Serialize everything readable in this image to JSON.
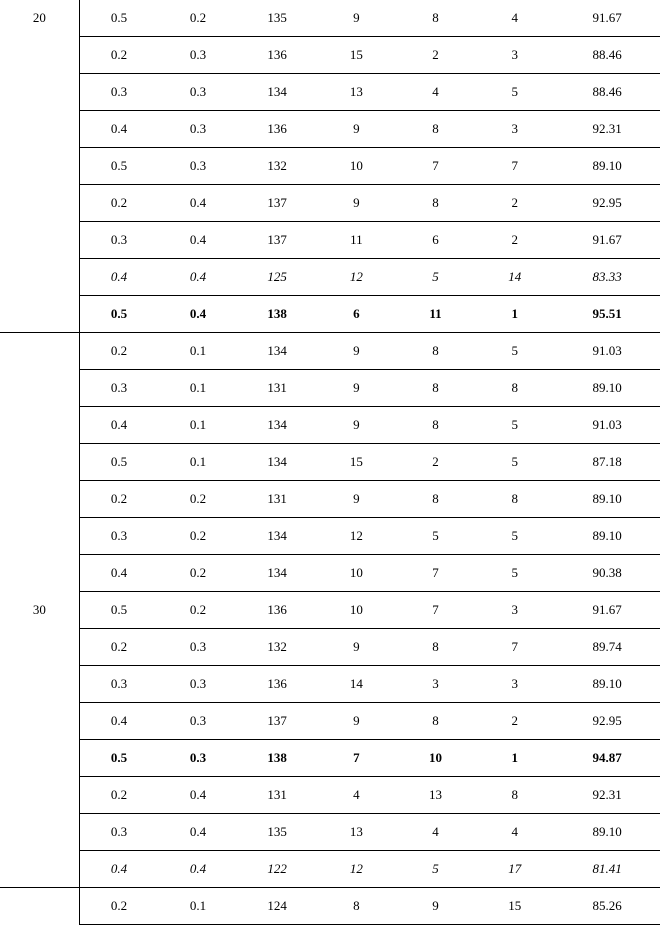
{
  "table": {
    "columns": 8,
    "col_widths_pct": [
      12,
      12,
      12,
      12,
      12,
      12,
      12,
      16
    ],
    "font_family": "Times New Roman",
    "font_size_pt": 10,
    "border_color": "#000000",
    "background_color": "#ffffff",
    "text_color": "#000000",
    "groups": [
      {
        "label": "20",
        "label_valign": "top",
        "rows": [
          {
            "style": "normal",
            "cells": [
              "0.5",
              "0.2",
              "135",
              "9",
              "8",
              "4",
              "91.67"
            ]
          },
          {
            "style": "normal",
            "cells": [
              "0.2",
              "0.3",
              "136",
              "15",
              "2",
              "3",
              "88.46"
            ]
          },
          {
            "style": "normal",
            "cells": [
              "0.3",
              "0.3",
              "134",
              "13",
              "4",
              "5",
              "88.46"
            ]
          },
          {
            "style": "normal",
            "cells": [
              "0.4",
              "0.3",
              "136",
              "9",
              "8",
              "3",
              "92.31"
            ]
          },
          {
            "style": "normal",
            "cells": [
              "0.5",
              "0.3",
              "132",
              "10",
              "7",
              "7",
              "89.10"
            ]
          },
          {
            "style": "normal",
            "cells": [
              "0.2",
              "0.4",
              "137",
              "9",
              "8",
              "2",
              "92.95"
            ]
          },
          {
            "style": "normal",
            "cells": [
              "0.3",
              "0.4",
              "137",
              "11",
              "6",
              "2",
              "91.67"
            ]
          },
          {
            "style": "italic",
            "cells": [
              "0.4",
              "0.4",
              "125",
              "12",
              "5",
              "14",
              "83.33"
            ]
          },
          {
            "style": "bold",
            "cells": [
              "0.5",
              "0.4",
              "138",
              "6",
              "11",
              "1",
              "95.51"
            ]
          }
        ]
      },
      {
        "label": "30",
        "label_valign": "middle",
        "rows": [
          {
            "style": "normal",
            "cells": [
              "0.2",
              "0.1",
              "134",
              "9",
              "8",
              "5",
              "91.03"
            ]
          },
          {
            "style": "normal",
            "cells": [
              "0.3",
              "0.1",
              "131",
              "9",
              "8",
              "8",
              "89.10"
            ]
          },
          {
            "style": "normal",
            "cells": [
              "0.4",
              "0.1",
              "134",
              "9",
              "8",
              "5",
              "91.03"
            ]
          },
          {
            "style": "normal",
            "cells": [
              "0.5",
              "0.1",
              "134",
              "15",
              "2",
              "5",
              "87.18"
            ]
          },
          {
            "style": "normal",
            "cells": [
              "0.2",
              "0.2",
              "131",
              "9",
              "8",
              "8",
              "89.10"
            ]
          },
          {
            "style": "normal",
            "cells": [
              "0.3",
              "0.2",
              "134",
              "12",
              "5",
              "5",
              "89.10"
            ]
          },
          {
            "style": "normal",
            "cells": [
              "0.4",
              "0.2",
              "134",
              "10",
              "7",
              "5",
              "90.38"
            ]
          },
          {
            "style": "normal",
            "cells": [
              "0.5",
              "0.2",
              "136",
              "10",
              "7",
              "3",
              "91.67"
            ]
          },
          {
            "style": "normal",
            "cells": [
              "0.2",
              "0.3",
              "132",
              "9",
              "8",
              "7",
              "89.74"
            ]
          },
          {
            "style": "normal",
            "cells": [
              "0.3",
              "0.3",
              "136",
              "14",
              "3",
              "3",
              "89.10"
            ]
          },
          {
            "style": "normal",
            "cells": [
              "0.4",
              "0.3",
              "137",
              "9",
              "8",
              "2",
              "92.95"
            ]
          },
          {
            "style": "bold",
            "cells": [
              "0.5",
              "0.3",
              "138",
              "7",
              "10",
              "1",
              "94.87"
            ]
          },
          {
            "style": "normal",
            "cells": [
              "0.2",
              "0.4",
              "131",
              "4",
              "13",
              "8",
              "92.31"
            ]
          },
          {
            "style": "normal",
            "cells": [
              "0.3",
              "0.4",
              "135",
              "13",
              "4",
              "4",
              "89.10"
            ]
          },
          {
            "style": "italic",
            "cells": [
              "0.4",
              "0.4",
              "122",
              "12",
              "5",
              "17",
              "81.41"
            ]
          }
        ]
      },
      {
        "label": "",
        "label_valign": "top",
        "rows": [
          {
            "style": "normal",
            "cells": [
              "0.2",
              "0.1",
              "124",
              "8",
              "9",
              "15",
              "85.26"
            ]
          }
        ]
      }
    ]
  }
}
